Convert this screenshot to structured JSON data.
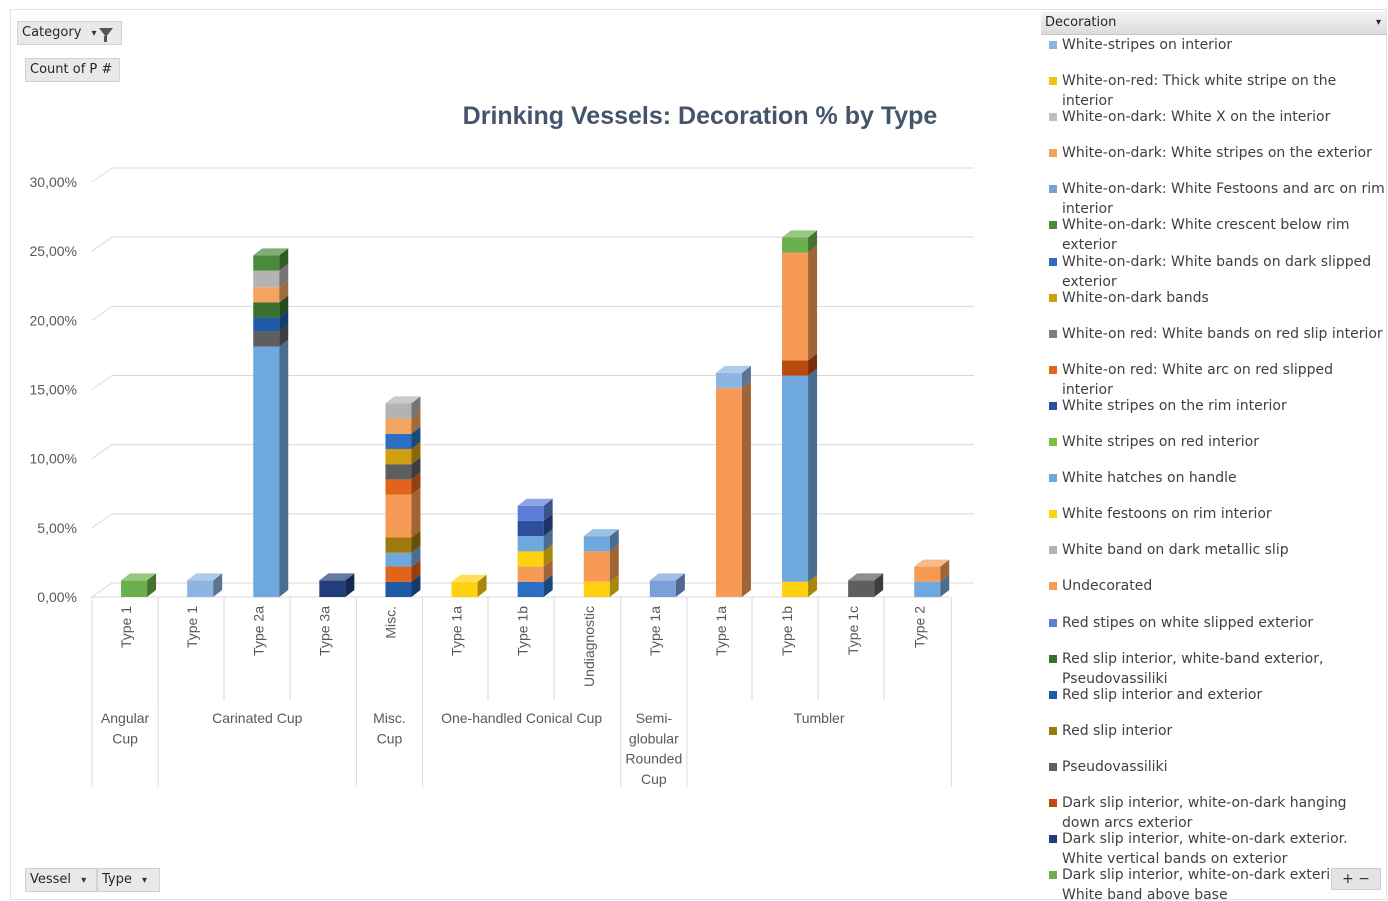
{
  "pivot": {
    "category_label": "Category",
    "values_label": "Count of P #",
    "vessel_label": "Vessel",
    "type_label": "Type",
    "filter_icon": "funnel-icon",
    "dropdown_icon": "dropdown-arrow-icon",
    "zoom_label": "+ − "
  },
  "legend": {
    "title": "Decoration",
    "items": [
      {
        "label": "White-stripes on interior",
        "color": "#8db4e2"
      },
      {
        "label": "White-on-red: Thick white stripe on the interior",
        "color": "#f2c314"
      },
      {
        "label": "White-on-dark: White X on the interior",
        "color": "#bfbfbf"
      },
      {
        "label": "White-on-dark: White stripes on the exterior",
        "color": "#f4a460"
      },
      {
        "label": "White-on-dark: White Festoons and arc on rim interior",
        "color": "#7b9fdb"
      },
      {
        "label": "White-on-dark: White crescent below rim exterior",
        "color": "#4a8a3a"
      },
      {
        "label": "White-on-dark: White bands on dark slipped exterior",
        "color": "#2c6fc2"
      },
      {
        "label": "White-on-dark bands",
        "color": "#d1a012"
      },
      {
        "label": "White-on red: White bands on red slip interior",
        "color": "#7f7f7f"
      },
      {
        "label": "White-on red: White arc on red slipped interior",
        "color": "#e2631a"
      },
      {
        "label": "White stripes on the rim interior",
        "color": "#2e4f9c"
      },
      {
        "label": "White stripes on red interior",
        "color": "#76c043"
      },
      {
        "label": "White hatches on handle",
        "color": "#6fa8dc"
      },
      {
        "label": "White festoons on rim interior",
        "color": "#ffd10f"
      },
      {
        "label": "White band on dark metallic slip",
        "color": "#b3b3b3"
      },
      {
        "label": "Undecorated",
        "color": "#f79a55"
      },
      {
        "label": "Red stipes on white slipped exterior",
        "color": "#5b7fd6"
      },
      {
        "label": "Red slip interior, white-band exterior, Pseudovassiliki",
        "color": "#38702e"
      },
      {
        "label": "Red slip interior and exterior",
        "color": "#1f5aa6"
      },
      {
        "label": "Red slip interior",
        "color": "#9e7a0d"
      },
      {
        "label": "Pseudovassiliki",
        "color": "#5e5e5e"
      },
      {
        "label": "Dark slip interior, white-on-dark hanging down arcs exterior",
        "color": "#b94a10"
      },
      {
        "label": "Dark slip interior, white-on-dark exterior. White vertical bands on exterior",
        "color": "#213e7a"
      },
      {
        "label": "Dark slip interior, white-on-dark exterior. White band above base",
        "color": "#6ab04c"
      }
    ]
  },
  "chart_data": {
    "type": "bar",
    "stacked": true,
    "three_d": true,
    "title": "Drinking Vessels: Decoration % by Type",
    "xlabel": "",
    "ylabel": "",
    "ylim": [
      0,
      0.3
    ],
    "y_ticks": [
      "0,00%",
      "5,00%",
      "10,00%",
      "15,00%",
      "20,00%",
      "25,00%",
      "30,00%"
    ],
    "grid": true,
    "legend_position": "right",
    "groups": [
      {
        "name": "Angular Cup",
        "lines": [
          "Angular",
          "Cup"
        ],
        "span": 1
      },
      {
        "name": "Carinated Cup",
        "lines": [
          "Carinated Cup"
        ],
        "span": 3
      },
      {
        "name": "Misc. Cup",
        "lines": [
          "Misc.",
          "Cup"
        ],
        "span": 1
      },
      {
        "name": "One-handled Conical Cup",
        "lines": [
          "One-handled Conical Cup"
        ],
        "span": 3
      },
      {
        "name": "Semi-globular Rounded Cup",
        "lines": [
          "Semi-",
          "globular",
          "Rounded",
          "Cup"
        ],
        "span": 1
      },
      {
        "name": "Tumbler",
        "lines": [
          "Tumbler"
        ],
        "span": 4
      }
    ],
    "categories": [
      "Type 1",
      "Type 1",
      "Type 2a",
      "Type 3a",
      "Misc.",
      "Type 1a",
      "Type 1b",
      "Undiagnostic",
      "Type 1a",
      "Type 1a",
      "Type 1b",
      "Type 1c",
      "Type 2"
    ],
    "bars": [
      {
        "segments": [
          {
            "d": 23,
            "v": 0.012
          }
        ]
      },
      {
        "segments": [
          {
            "d": 0,
            "v": 0.012
          }
        ]
      },
      {
        "segments": [
          {
            "d": 12,
            "v": 0.181
          },
          {
            "d": 20,
            "v": 0.011
          },
          {
            "d": 18,
            "v": 0.01
          },
          {
            "d": 17,
            "v": 0.011
          },
          {
            "d": 3,
            "v": 0.011
          },
          {
            "d": 14,
            "v": 0.012
          },
          {
            "d": 5,
            "v": 0.011
          }
        ]
      },
      {
        "segments": [
          {
            "d": 22,
            "v": 0.012
          }
        ]
      },
      {
        "segments": [
          {
            "d": 18,
            "v": 0.011
          },
          {
            "d": 9,
            "v": 0.011
          },
          {
            "d": 12,
            "v": 0.01
          },
          {
            "d": 19,
            "v": 0.011
          },
          {
            "d": 15,
            "v": 0.031
          },
          {
            "d": 9,
            "v": 0.011
          },
          {
            "d": 20,
            "v": 0.011
          },
          {
            "d": 7,
            "v": 0.011
          },
          {
            "d": 6,
            "v": 0.011
          },
          {
            "d": 3,
            "v": 0.011
          },
          {
            "d": 14,
            "v": 0.011
          }
        ]
      },
      {
        "segments": [
          {
            "d": 13,
            "v": 0.011
          }
        ]
      },
      {
        "segments": [
          {
            "d": 6,
            "v": 0.011
          },
          {
            "d": 15,
            "v": 0.011
          },
          {
            "d": 13,
            "v": 0.011
          },
          {
            "d": 12,
            "v": 0.011
          },
          {
            "d": 10,
            "v": 0.011
          },
          {
            "d": 16,
            "v": 0.011
          }
        ]
      },
      {
        "segments": [
          {
            "d": 13,
            "v": 0.011
          },
          {
            "d": 15,
            "v": 0.022
          },
          {
            "d": 12,
            "v": 0.011
          }
        ]
      },
      {
        "segments": [
          {
            "d": 4,
            "v": 0.012
          }
        ]
      },
      {
        "segments": [
          {
            "d": 15,
            "v": 0.151
          },
          {
            "d": 0,
            "v": 0.011
          }
        ]
      },
      {
        "segments": [
          {
            "d": 13,
            "v": 0.011
          },
          {
            "d": 12,
            "v": 0.149
          },
          {
            "d": 21,
            "v": 0.011
          },
          {
            "d": 15,
            "v": 0.078
          },
          {
            "d": 23,
            "v": 0.011
          }
        ]
      },
      {
        "segments": [
          {
            "d": 20,
            "v": 0.012
          }
        ]
      },
      {
        "segments": [
          {
            "d": 12,
            "v": 0.011
          },
          {
            "d": 15,
            "v": 0.011
          }
        ]
      }
    ]
  }
}
